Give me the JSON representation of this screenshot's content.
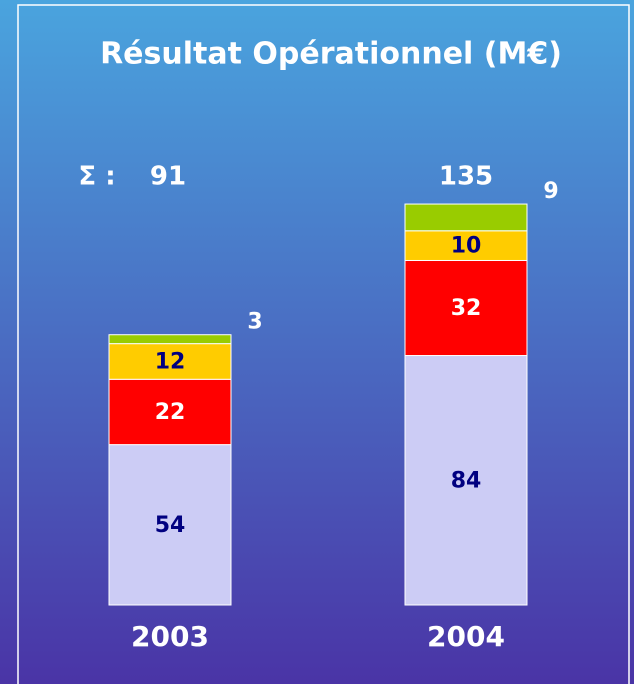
{
  "chart_data": {
    "type": "stacked_bar",
    "title": "Résultat Opérationnel (M€)",
    "categories": [
      "2003",
      "2004"
    ],
    "total_label": "Σ :",
    "totals": [
      91,
      135
    ],
    "series": [
      {
        "color": "#ccccf5",
        "label_color": "#000080",
        "values": [
          54,
          84
        ]
      },
      {
        "color": "#ff0000",
        "label_color": "#ffffff",
        "values": [
          22,
          32
        ]
      },
      {
        "color": "#ffcc00",
        "label_color": "#000080",
        "values": [
          12,
          10
        ]
      },
      {
        "color": "#99cc00",
        "label_color": "#ffffff",
        "values": [
          3,
          9
        ]
      }
    ]
  }
}
